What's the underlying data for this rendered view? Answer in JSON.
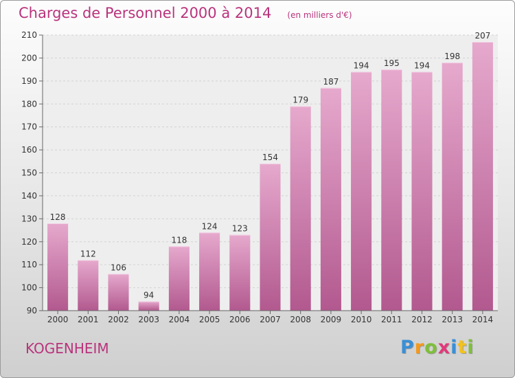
{
  "header": {
    "title": "Charges de Personnel 2000 à 2014",
    "subtitle": "(en milliers d'€)"
  },
  "commune": "KOGENHEIM",
  "logo": {
    "text": "Proxiti",
    "letters": [
      "P",
      "r",
      "o",
      "x",
      "i",
      "t",
      "i"
    ],
    "colors": [
      "#3a8fd6",
      "#f29a1f",
      "#7fbf3a",
      "#e2397b",
      "#3a8fd6",
      "#f2c21f",
      "#7fbf3a"
    ]
  },
  "colors": {
    "bar_top": "#e6a9cd",
    "bar_bottom": "#b2598f",
    "title": "#b9337c",
    "plot_background": "#eeeeee"
  },
  "chart_data": {
    "type": "bar",
    "title": "Charges de Personnel 2000 à 2014",
    "subtitle": "(en milliers d'€)",
    "categories": [
      "2000",
      "2001",
      "2002",
      "2003",
      "2004",
      "2005",
      "2006",
      "2007",
      "2008",
      "2009",
      "2010",
      "2011",
      "2012",
      "2013",
      "2014"
    ],
    "values": [
      128,
      112,
      106,
      94,
      118,
      124,
      123,
      154,
      179,
      187,
      194,
      195,
      194,
      198,
      207
    ],
    "ylim": [
      90,
      210
    ],
    "yticks": [
      90,
      100,
      110,
      120,
      130,
      140,
      150,
      160,
      170,
      180,
      190,
      200,
      210
    ],
    "grid": true,
    "data_labels": true
  }
}
